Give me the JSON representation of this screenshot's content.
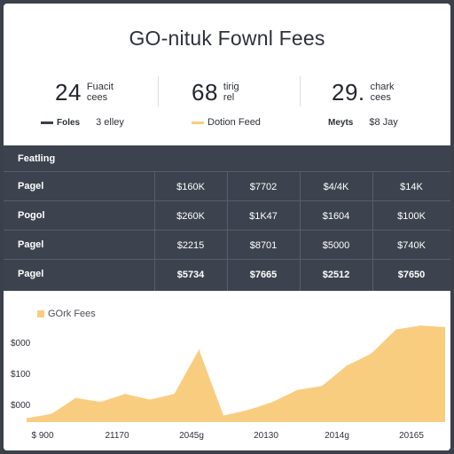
{
  "title": "GO-nituk Fownl Fees",
  "stats": [
    {
      "value": "24",
      "label_top": "Fuacit",
      "label_bottom": "cees"
    },
    {
      "value": "68",
      "label_top": "tirig",
      "label_bottom": "rel"
    },
    {
      "value": "29.",
      "label_top": "chark",
      "label_bottom": "cees"
    }
  ],
  "legend": {
    "item1_label": "Foles",
    "item1_value": "3 elley",
    "item2_label": "Dotion Feed",
    "item3_label": "Meyts",
    "item3_value": "$8 Jay"
  },
  "table": {
    "header": "Featling",
    "rows": [
      {
        "label": "Pagel",
        "cells": [
          "$160K",
          "$7702",
          "$4/4K",
          "$14K"
        ]
      },
      {
        "label": "Pogol",
        "cells": [
          "$260K",
          "$1K47",
          "$1604",
          "$100K"
        ]
      },
      {
        "label": "Pagel",
        "cells": [
          "$2215",
          "$8701",
          "$5000",
          "$740K"
        ]
      },
      {
        "label": "Pagel",
        "cells": [
          "$5734",
          "$7665",
          "$2512",
          "$7650"
        ]
      }
    ]
  },
  "colors": {
    "accent": "#f9cd80",
    "dark_bg": "#3d434e",
    "legend_dark": "#3b404a"
  },
  "chart_data": {
    "type": "area",
    "legend": "GOrk Fees",
    "y_tick_labels": [
      "$000",
      "$100",
      "$000"
    ],
    "x_tick_labels": [
      "$ 900",
      "21170",
      "2045g",
      "20130",
      "2014g",
      "20165"
    ],
    "series": [
      {
        "values": [
          5,
          10,
          30,
          25,
          35,
          28,
          35,
          90,
          8,
          15,
          25,
          40,
          45,
          70,
          85,
          115,
          120,
          118
        ]
      }
    ]
  }
}
